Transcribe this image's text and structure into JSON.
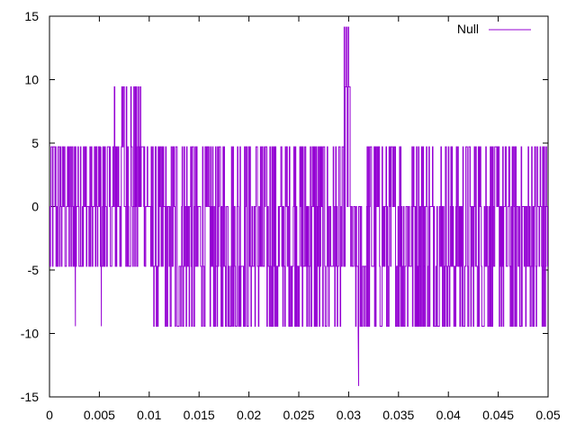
{
  "chart_data": {
    "type": "line",
    "title": "",
    "xlabel": "",
    "ylabel": "",
    "xlim": [
      0,
      0.05
    ],
    "ylim": [
      -15,
      15
    ],
    "x_ticks": [
      0,
      0.005,
      0.01,
      0.015,
      0.02,
      0.025,
      0.03,
      0.035,
      0.04,
      0.045,
      0.05
    ],
    "x_tick_labels": [
      "0",
      "0.005",
      "0.01",
      "0.015",
      "0.02",
      "0.025",
      "0.03",
      "0.035",
      "0.04",
      "0.045",
      "0.05"
    ],
    "y_ticks": [
      -15,
      -10,
      -5,
      0,
      5,
      10,
      15
    ],
    "y_tick_labels": [
      "-15",
      "-10",
      "-5",
      "0",
      "5",
      "10",
      "15"
    ],
    "grid": false,
    "legend_position": "top-right",
    "series": [
      {
        "name": "Null",
        "color": "#9400D3",
        "levels": [
          -14.14,
          -9.43,
          -4.71,
          0,
          4.71,
          9.43,
          14.14
        ],
        "segments": [
          {
            "x": [
              0.0,
              0.0065
            ],
            "low": -4.71,
            "high": 4.71,
            "note": "rapid switching"
          },
          {
            "x": [
              0.0065,
              0.0095
            ],
            "low": -4.71,
            "high": 9.43
          },
          {
            "x": [
              0.0095,
              0.0102
            ],
            "low": -4.71,
            "high": 4.71
          },
          {
            "x": [
              0.0102,
              0.0118
            ],
            "low": -9.43,
            "high": 4.71
          },
          {
            "x": [
              0.0118,
              0.0122
            ],
            "low": -9.43,
            "high": 0
          },
          {
            "x": [
              0.0122,
              0.0295
            ],
            "low": -9.43,
            "high": 4.71
          },
          {
            "x": [
              0.0295,
              0.0302
            ],
            "low": -4.71,
            "high": 14.14
          },
          {
            "x": [
              0.0302,
              0.0318
            ],
            "low": -9.43,
            "high": 0
          },
          {
            "x": [
              0.0318,
              0.05
            ],
            "low": -9.43,
            "high": 4.71
          }
        ],
        "spikes": [
          {
            "x": 0.0026,
            "y": -9.43
          },
          {
            "x": 0.0052,
            "y": -9.43
          },
          {
            "x": 0.031,
            "y": -14.14
          }
        ]
      }
    ]
  }
}
